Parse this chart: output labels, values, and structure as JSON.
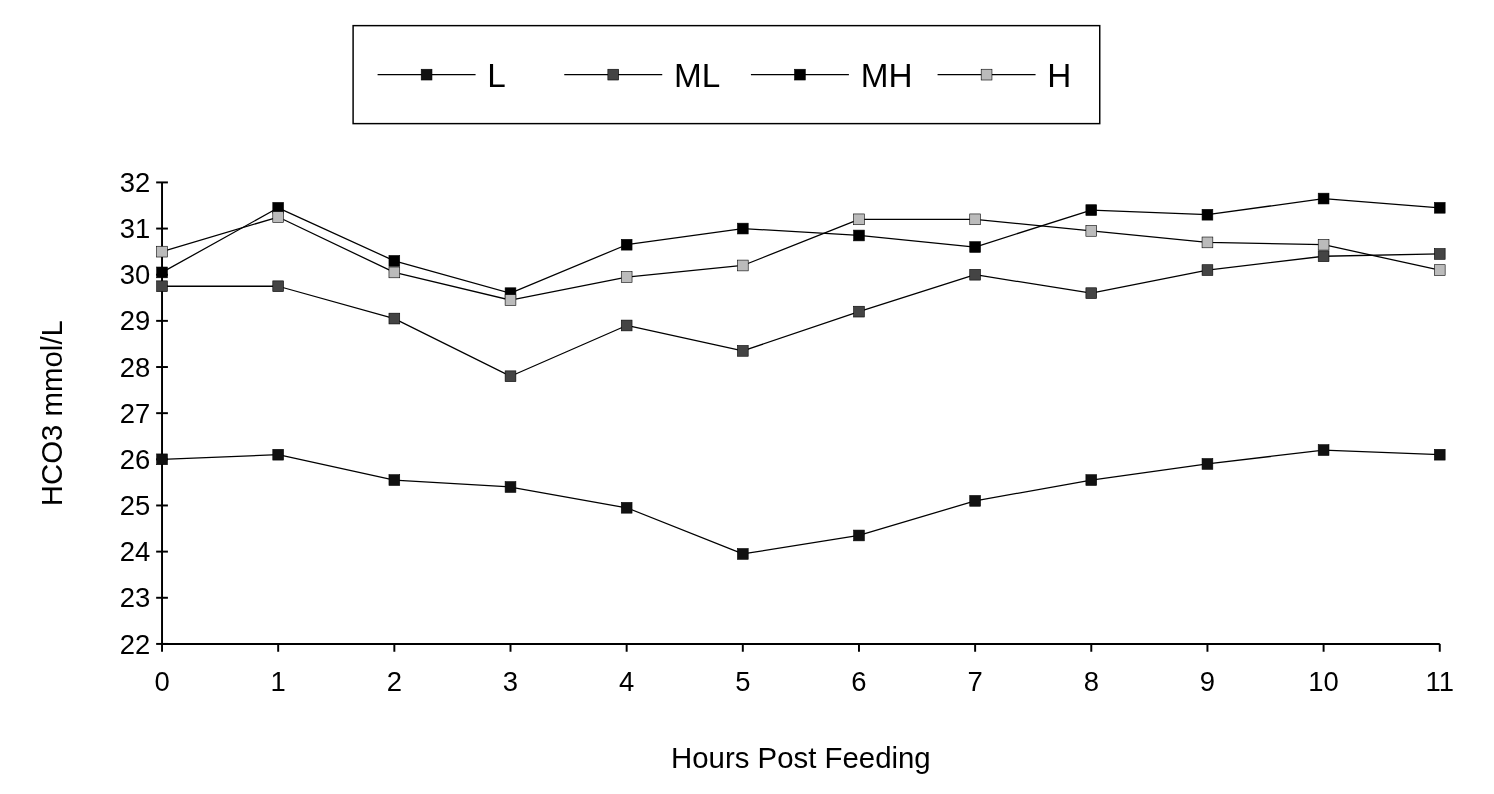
{
  "chart_data": {
    "type": "line",
    "xlabel": "Hours Post Feeding",
    "ylabel": "HCO3 mmol/L",
    "categories": [
      "0",
      "1",
      "2",
      "3",
      "4",
      "5",
      "6",
      "7",
      "8",
      "9",
      "10",
      "11"
    ],
    "series": [
      {
        "name": "L",
        "color": "#111111",
        "values": [
          26.0,
          26.1,
          25.55,
          25.4,
          24.95,
          23.95,
          24.35,
          25.1,
          25.55,
          25.9,
          26.2,
          26.1
        ]
      },
      {
        "name": "ML",
        "color": "#444444",
        "values": [
          29.75,
          29.75,
          29.05,
          27.8,
          28.9,
          28.35,
          29.2,
          30.0,
          29.6,
          30.1,
          30.4,
          30.45
        ]
      },
      {
        "name": "MH",
        "color": "#000000",
        "values": [
          30.05,
          31.45,
          30.3,
          29.6,
          30.65,
          31.0,
          30.85,
          30.6,
          31.4,
          31.3,
          31.65,
          31.45
        ]
      },
      {
        "name": "H",
        "color": "#bbbbbb",
        "values": [
          30.5,
          31.25,
          30.05,
          29.45,
          29.95,
          30.2,
          31.2,
          31.2,
          30.95,
          30.7,
          30.65,
          30.1
        ]
      }
    ],
    "ylim": [
      22,
      32
    ],
    "yticks": [
      22,
      23,
      24,
      25,
      26,
      27,
      28,
      29,
      30,
      31,
      32
    ],
    "grid": false,
    "legend": "top",
    "marker": "square",
    "line_style": "solid"
  }
}
